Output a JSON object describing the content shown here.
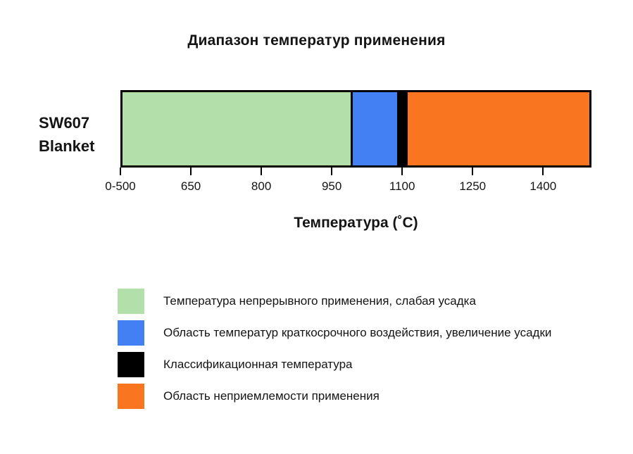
{
  "page": {
    "background_color": "#ffffff",
    "text_color": "#141414"
  },
  "chart_data": {
    "type": "bar",
    "orientation": "horizontal-stacked",
    "title": "Диапазон температур применения",
    "xlabel": "Температура (˚C)",
    "row_label_line1": "SW607",
    "row_label_line2": "Blanket",
    "grid": false,
    "legend_position": "bottom-left",
    "axis": {
      "min": 500,
      "max": 1503,
      "unit": "°C",
      "ticks": [
        {
          "value": 500,
          "label": "0-500"
        },
        {
          "value": 650,
          "label": "650"
        },
        {
          "value": 800,
          "label": "800"
        },
        {
          "value": 950,
          "label": "950"
        },
        {
          "value": 1100,
          "label": "1100"
        },
        {
          "value": 1250,
          "label": "1250"
        },
        {
          "value": 1400,
          "label": "1400"
        }
      ]
    },
    "segments": [
      {
        "name": "continuous-use",
        "from": 500,
        "to": 990,
        "color": "#b3dfab",
        "label": "Температура непрерывного применения, слабая усадка"
      },
      {
        "name": "short-term-exposure",
        "from": 990,
        "to": 1090,
        "color": "#4280f4",
        "label": "Область температур краткосрочного воздействия, увеличение усадки"
      },
      {
        "name": "classification-temperature",
        "from": 1090,
        "to": 1108,
        "color": "#000000",
        "label": "Классификационная температура",
        "nominal_value": 1100
      },
      {
        "name": "unsuitable",
        "from": 1108,
        "to": 1503,
        "color": "#f9751f",
        "label": "Область неприемлемости применения"
      }
    ],
    "legend": [
      {
        "name": "continuous-use",
        "color": "#b3dfab",
        "label": "Температура непрерывного применения, слабая усадка"
      },
      {
        "name": "short-term-exposure",
        "color": "#4280f4",
        "label": "Область температур краткосрочного воздействия, увеличение усадки"
      },
      {
        "name": "classification-temperature",
        "color": "#000000",
        "label": "Классификационная температура"
      },
      {
        "name": "unsuitable",
        "color": "#f9751f",
        "label": "Область неприемлемости применения"
      }
    ]
  }
}
